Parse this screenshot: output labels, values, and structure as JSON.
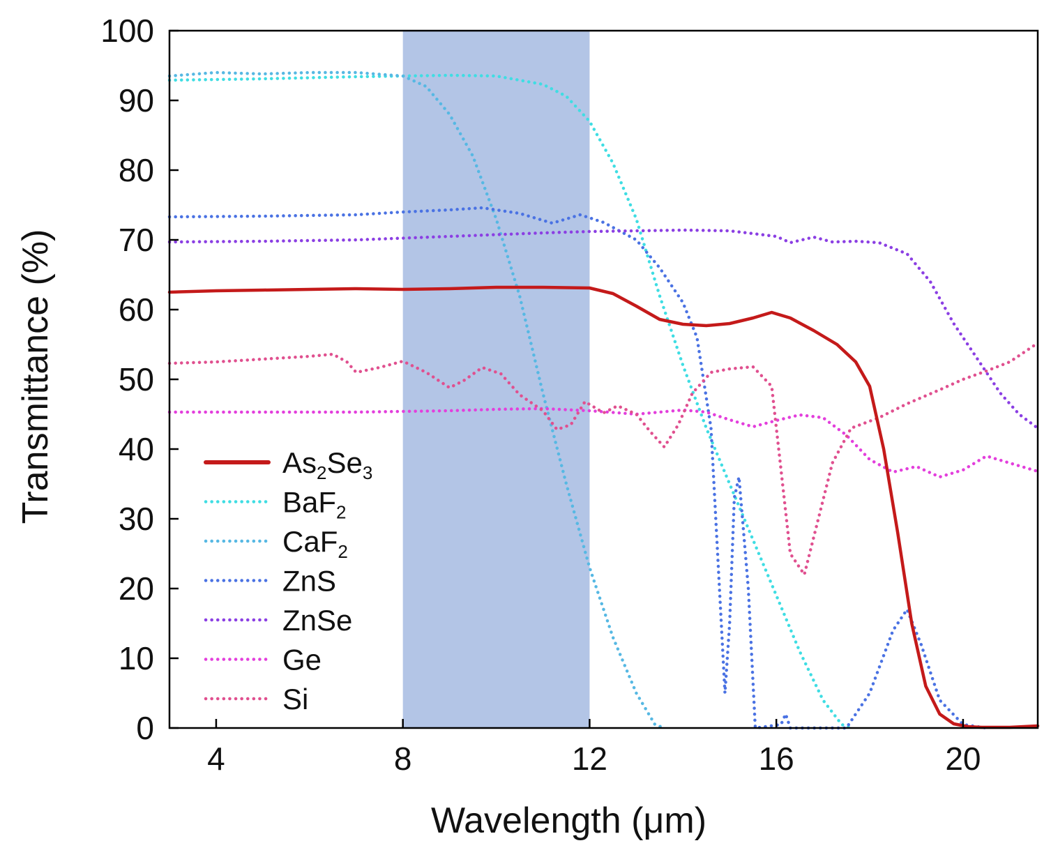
{
  "chart_data": {
    "type": "line",
    "title": "",
    "xlabel": "Wavelength (μm)",
    "ylabel": "Transmittance (%)",
    "xlim": [
      3,
      21.6
    ],
    "ylim": [
      0,
      100
    ],
    "xticks": [
      4,
      8,
      12,
      16,
      20
    ],
    "yticks": [
      0,
      10,
      20,
      30,
      40,
      50,
      60,
      70,
      80,
      90,
      100
    ],
    "grid": false,
    "legend_position": "bottom-left",
    "highlight_band": {
      "x_start": 8,
      "x_end": 12,
      "color": "#b3c5e6"
    },
    "series": [
      {
        "name": "As2Se3",
        "legend": {
          "base1": "As",
          "sub1": "2",
          "base2": "Se",
          "sub2": "3"
        },
        "color": "#c41a1a",
        "style": "solid",
        "points": [
          [
            3,
            62.5
          ],
          [
            4,
            62.7
          ],
          [
            5,
            62.8
          ],
          [
            6,
            62.9
          ],
          [
            7,
            63
          ],
          [
            8,
            62.9
          ],
          [
            9,
            63
          ],
          [
            10,
            63.2
          ],
          [
            11,
            63.2
          ],
          [
            12,
            63.1
          ],
          [
            12.5,
            62.3
          ],
          [
            13,
            60.5
          ],
          [
            13.5,
            58.6
          ],
          [
            14,
            57.9
          ],
          [
            14.5,
            57.7
          ],
          [
            15,
            58
          ],
          [
            15.5,
            58.8
          ],
          [
            15.9,
            59.6
          ],
          [
            16.3,
            58.8
          ],
          [
            16.8,
            57
          ],
          [
            17.3,
            55
          ],
          [
            17.7,
            52.5
          ],
          [
            18,
            49
          ],
          [
            18.3,
            40
          ],
          [
            18.6,
            28
          ],
          [
            18.9,
            15
          ],
          [
            19.2,
            6
          ],
          [
            19.5,
            2
          ],
          [
            19.8,
            0.6
          ],
          [
            20.1,
            0.2
          ],
          [
            20.4,
            0.1
          ],
          [
            21,
            0.1
          ],
          [
            21.6,
            0.3
          ]
        ]
      },
      {
        "name": "BaF2",
        "legend": {
          "base1": "BaF",
          "sub1": "2",
          "base2": "",
          "sub2": ""
        },
        "color": "#3fdde3",
        "style": "dotted",
        "points": [
          [
            3,
            92.9
          ],
          [
            5,
            93.1
          ],
          [
            7,
            93.4
          ],
          [
            9,
            93.6
          ],
          [
            10,
            93.5
          ],
          [
            11,
            92.3
          ],
          [
            11.5,
            90.6
          ],
          [
            12,
            87
          ],
          [
            12.5,
            81
          ],
          [
            13,
            73
          ],
          [
            13.5,
            62
          ],
          [
            14,
            52
          ],
          [
            14.5,
            43
          ],
          [
            15,
            35
          ],
          [
            15.5,
            27
          ],
          [
            16,
            19
          ],
          [
            16.5,
            11
          ],
          [
            17,
            4
          ],
          [
            17.4,
            0.5
          ],
          [
            17.6,
            0
          ]
        ]
      },
      {
        "name": "CaF2",
        "legend": {
          "base1": "CaF",
          "sub1": "2",
          "base2": "",
          "sub2": ""
        },
        "color": "#56b8e3",
        "style": "dotted",
        "points": [
          [
            3,
            93.5
          ],
          [
            4,
            94
          ],
          [
            5,
            93.8
          ],
          [
            6,
            94
          ],
          [
            7,
            94
          ],
          [
            8,
            93.5
          ],
          [
            8.5,
            92
          ],
          [
            9,
            88
          ],
          [
            9.5,
            82
          ],
          [
            10,
            73
          ],
          [
            10.5,
            62
          ],
          [
            11,
            48
          ],
          [
            11.5,
            35
          ],
          [
            12,
            23
          ],
          [
            12.5,
            13
          ],
          [
            13,
            5
          ],
          [
            13.4,
            0.5
          ],
          [
            13.6,
            0
          ]
        ]
      },
      {
        "name": "ZnS",
        "legend": {
          "base1": "ZnS",
          "sub1": "",
          "base2": "",
          "sub2": ""
        },
        "color": "#4a72e3",
        "style": "dotted",
        "points": [
          [
            3,
            73.3
          ],
          [
            5,
            73.4
          ],
          [
            7,
            73.6
          ],
          [
            8,
            74
          ],
          [
            9,
            74.3
          ],
          [
            9.7,
            74.6
          ],
          [
            10.5,
            73.8
          ],
          [
            11.2,
            72.4
          ],
          [
            11.8,
            73.6
          ],
          [
            12.3,
            72.5
          ],
          [
            13,
            70
          ],
          [
            13.5,
            66
          ],
          [
            14,
            61
          ],
          [
            14.3,
            56
          ],
          [
            14.6,
            43
          ],
          [
            14.9,
            5
          ],
          [
            15,
            15
          ],
          [
            15.1,
            33
          ],
          [
            15.2,
            36
          ],
          [
            15.4,
            20
          ],
          [
            15.55,
            0
          ],
          [
            16.1,
            0.5
          ],
          [
            16.2,
            2
          ],
          [
            16.3,
            0
          ],
          [
            17.5,
            0
          ],
          [
            18,
            5
          ],
          [
            18.5,
            14
          ],
          [
            18.8,
            17
          ],
          [
            19.1,
            12
          ],
          [
            19.5,
            4
          ],
          [
            20,
            0.5
          ],
          [
            20.5,
            0
          ]
        ]
      },
      {
        "name": "ZnSe",
        "legend": {
          "base1": "ZnSe",
          "sub1": "",
          "base2": "",
          "sub2": ""
        },
        "color": "#8b3fe3",
        "style": "dotted",
        "points": [
          [
            3,
            69.7
          ],
          [
            5,
            69.8
          ],
          [
            7,
            70
          ],
          [
            9,
            70.5
          ],
          [
            11,
            71
          ],
          [
            12,
            71.2
          ],
          [
            13,
            71.3
          ],
          [
            14,
            71.4
          ],
          [
            15,
            71.3
          ],
          [
            16,
            70.5
          ],
          [
            16.3,
            69.6
          ],
          [
            16.8,
            70.4
          ],
          [
            17.2,
            69.7
          ],
          [
            17.7,
            69.8
          ],
          [
            18.2,
            69.6
          ],
          [
            18.8,
            68
          ],
          [
            19.3,
            64
          ],
          [
            19.8,
            58
          ],
          [
            20.3,
            53
          ],
          [
            20.8,
            48
          ],
          [
            21.2,
            45
          ],
          [
            21.6,
            43
          ]
        ]
      },
      {
        "name": "Ge",
        "legend": {
          "base1": "Ge",
          "sub1": "",
          "base2": "",
          "sub2": ""
        },
        "color": "#e33fdc",
        "style": "dotted",
        "points": [
          [
            3,
            45.3
          ],
          [
            5,
            45.3
          ],
          [
            7,
            45.3
          ],
          [
            9,
            45.5
          ],
          [
            10,
            45.7
          ],
          [
            11,
            45.8
          ],
          [
            12,
            45.5
          ],
          [
            13,
            45
          ],
          [
            14,
            45.6
          ],
          [
            14.5,
            45.3
          ],
          [
            15,
            44.2
          ],
          [
            15.5,
            43.2
          ],
          [
            16,
            44.1
          ],
          [
            16.5,
            44.9
          ],
          [
            17,
            44.5
          ],
          [
            17.5,
            42
          ],
          [
            18,
            38.5
          ],
          [
            18.5,
            36.7
          ],
          [
            19,
            37.5
          ],
          [
            19.5,
            36
          ],
          [
            20,
            37
          ],
          [
            20.5,
            39
          ],
          [
            21,
            38
          ],
          [
            21.6,
            36.8
          ]
        ]
      },
      {
        "name": "Si",
        "legend": {
          "base1": "Si",
          "sub1": "",
          "base2": "",
          "sub2": ""
        },
        "color": "#e0508f",
        "style": "dotted",
        "points": [
          [
            3,
            52.3
          ],
          [
            4,
            52.5
          ],
          [
            5,
            52.9
          ],
          [
            6,
            53.3
          ],
          [
            6.5,
            53.6
          ],
          [
            6.8,
            52.5
          ],
          [
            7,
            51
          ],
          [
            7.5,
            51.7
          ],
          [
            8,
            52.6
          ],
          [
            8.5,
            51
          ],
          [
            9,
            48.8
          ],
          [
            9.3,
            49.8
          ],
          [
            9.7,
            51.7
          ],
          [
            10.1,
            50.8
          ],
          [
            10.5,
            47.8
          ],
          [
            11,
            45.5
          ],
          [
            11.3,
            42.8
          ],
          [
            11.6,
            43.5
          ],
          [
            11.9,
            46.8
          ],
          [
            12.3,
            45.2
          ],
          [
            12.6,
            46.2
          ],
          [
            13,
            45
          ],
          [
            13.3,
            42.5
          ],
          [
            13.6,
            40.3
          ],
          [
            13.9,
            43.5
          ],
          [
            14.2,
            48
          ],
          [
            14.6,
            51
          ],
          [
            15,
            51.5
          ],
          [
            15.5,
            51.8
          ],
          [
            15.9,
            49
          ],
          [
            16.1,
            37
          ],
          [
            16.3,
            25
          ],
          [
            16.6,
            22
          ],
          [
            16.9,
            30
          ],
          [
            17.2,
            38
          ],
          [
            17.6,
            43
          ],
          [
            18.2,
            44.5
          ],
          [
            18.8,
            46.5
          ],
          [
            19.5,
            48.5
          ],
          [
            20,
            50
          ],
          [
            20.5,
            51.2
          ],
          [
            21,
            52.5
          ],
          [
            21.6,
            55.2
          ]
        ]
      }
    ]
  }
}
